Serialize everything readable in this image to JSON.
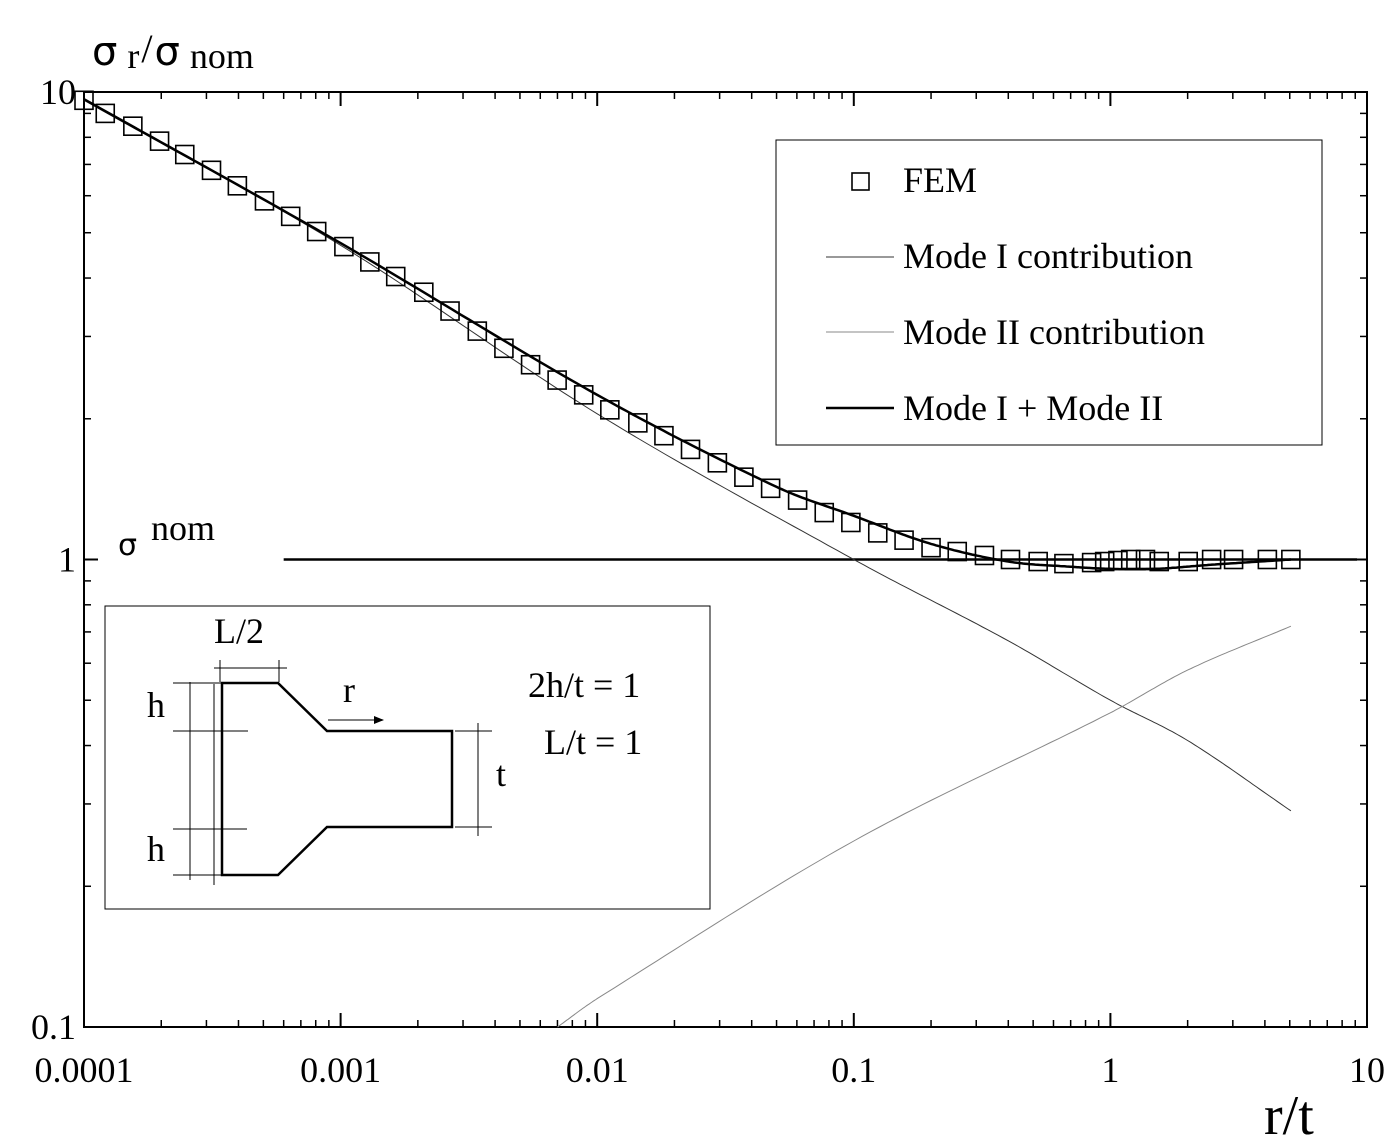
{
  "chart_data": {
    "type": "line",
    "xscale": "log",
    "yscale": "log",
    "xlim": [
      0.0001,
      10
    ],
    "ylim": [
      0.1,
      10
    ],
    "xlabel": "r/t",
    "ylabel": {
      "sigma": "σ",
      "sub_r": "r",
      "slash": "/",
      "sigma2": "σ",
      "sub_nom": "nom"
    },
    "x_ticks": [
      {
        "value": 0.0001,
        "label": "0.0001"
      },
      {
        "value": 0.001,
        "label": "0.001"
      },
      {
        "value": 0.01,
        "label": "0.01"
      },
      {
        "value": 0.1,
        "label": "0.1"
      },
      {
        "value": 1,
        "label": "1"
      },
      {
        "value": 10,
        "label": "10"
      }
    ],
    "y_ticks": [
      {
        "value": 0.1,
        "label": "0.1"
      },
      {
        "value": 1,
        "label": "1"
      },
      {
        "value": 10,
        "label": "10"
      }
    ],
    "grid": false,
    "legend": {
      "position": "top-right",
      "entries": [
        {
          "label": "FEM",
          "style": "square-marker"
        },
        {
          "label": "Mode I contribution",
          "style": "thin-line"
        },
        {
          "label": "Mode II contribution",
          "style": "thin-gray-line"
        },
        {
          "label": "Mode I + Mode II",
          "style": "thick-line"
        }
      ]
    },
    "reference_line": {
      "y": 1,
      "x_range": [
        0.0006,
        10
      ],
      "label_sigma": "σ",
      "label_sub": "nom"
    },
    "series": [
      {
        "name": "FEM",
        "style": "square-marker",
        "x": [
          0.0001,
          0.000121,
          0.000155,
          0.000197,
          0.000247,
          0.000314,
          0.000396,
          0.000505,
          0.000639,
          0.000807,
          0.00103,
          0.0013,
          0.00164,
          0.00211,
          0.00267,
          0.00341,
          0.00433,
          0.0055,
          0.00698,
          0.00886,
          0.0112,
          0.0144,
          0.0182,
          0.0231,
          0.0294,
          0.0373,
          0.0474,
          0.0604,
          0.0767,
          0.0974,
          0.124,
          0.157,
          0.2,
          0.253,
          0.323,
          0.408,
          0.523,
          0.659,
          0.845,
          0.95,
          1.07,
          1.2,
          1.37,
          1.55,
          2.01,
          2.48,
          3.02,
          4.09,
          5.05
        ],
        "y": [
          9.6,
          9.0,
          8.45,
          7.85,
          7.35,
          6.8,
          6.3,
          5.85,
          5.42,
          5.03,
          4.67,
          4.33,
          4.03,
          3.73,
          3.4,
          3.08,
          2.83,
          2.61,
          2.42,
          2.25,
          2.09,
          1.96,
          1.84,
          1.72,
          1.61,
          1.5,
          1.42,
          1.34,
          1.26,
          1.2,
          1.14,
          1.1,
          1.06,
          1.04,
          1.02,
          1.0,
          0.99,
          0.98,
          0.985,
          0.99,
          0.995,
          1.0,
          1.0,
          0.99,
          0.99,
          1.0,
          1.0,
          1.0,
          1.0
        ]
      },
      {
        "name": "Mode I contribution",
        "style": "thin-line",
        "x": [
          0.0001,
          0.001,
          0.01,
          0.1,
          0.4,
          1,
          2,
          5.05
        ],
        "y": [
          9.6,
          4.7,
          2.05,
          1.0,
          0.67,
          0.5,
          0.41,
          0.29
        ]
      },
      {
        "name": "Mode II contribution",
        "style": "thin-gray-line",
        "x": [
          0.007,
          0.01,
          0.1,
          1,
          2,
          5.05
        ],
        "y": [
          0.1,
          0.115,
          0.25,
          0.47,
          0.58,
          0.72
        ]
      },
      {
        "name": "Mode I + Mode II",
        "style": "thick-line",
        "x": [
          0.0001,
          0.001,
          0.01,
          0.05,
          0.1,
          0.2,
          0.4,
          0.7,
          1,
          1.5,
          2.5,
          5.05
        ],
        "y": [
          9.65,
          4.75,
          2.25,
          1.43,
          1.24,
          1.08,
          0.99,
          0.965,
          0.955,
          0.955,
          0.975,
          1.0
        ]
      }
    ],
    "inset": {
      "label_half_length": "L/2",
      "label_h_top": "h",
      "label_h_bottom": "h",
      "label_r": "r",
      "label_t": "t",
      "note_1": "2h/t = 1",
      "note_2": "L/t = 1"
    }
  }
}
